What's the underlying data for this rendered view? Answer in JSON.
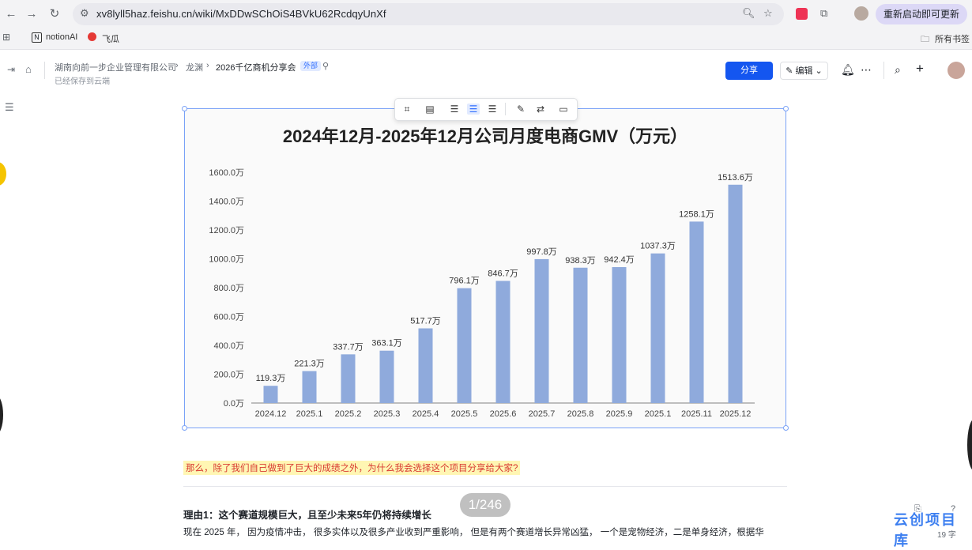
{
  "browser": {
    "url": "xv8lyll5haz.feishu.cn/wiki/MxDDwSChOiS4BVkU62RcdqyUnXf",
    "restart_label": "重新启动即可更新",
    "bookmarks": [
      "notionAI",
      "飞瓜"
    ],
    "all_bookmarks": "所有书签"
  },
  "doc_header": {
    "breadcrumbs": [
      "湖南向前一步企业管理有限公司",
      "龙渊",
      "2026千亿商机分享会"
    ],
    "separator": "›",
    "external_badge": "外部",
    "saved_status": "已经保存到云端",
    "share_label": "分享",
    "edit_label": "编辑"
  },
  "chart_data": {
    "type": "bar",
    "title": "2024年12月-2025年12月公司月度电商GMV（万元）",
    "categories": [
      "2024.12",
      "2025.1",
      "2025.2",
      "2025.3",
      "2025.4",
      "2025.5",
      "2025.6",
      "2025.7",
      "2025.8",
      "2025.9",
      "2025.1",
      "2025.11",
      "2025.12"
    ],
    "values": [
      119.3,
      221.3,
      337.7,
      363.1,
      517.7,
      796.1,
      846.7,
      997.8,
      938.3,
      942.4,
      1037.3,
      1258.1,
      1513.6
    ],
    "value_labels": [
      "119.3万",
      "221.3万",
      "337.7万",
      "363.1万",
      "517.7万",
      "796.1万",
      "846.7万",
      "997.8万",
      "938.3万",
      "942.4万",
      "1037.3万",
      "1258.1万",
      "1513.6万"
    ],
    "yticks": [
      "0.0万",
      "200.0万",
      "400.0万",
      "600.0万",
      "800.0万",
      "1000.0万",
      "1200.0万",
      "1400.0万",
      "1600.0万"
    ],
    "ylim": [
      0,
      1600
    ],
    "bar_color": "#8faadc",
    "grid": false,
    "legend": "none"
  },
  "content": {
    "highlight": "那么，除了我们自己做到了巨大的成绩之外，为什么我会选择这个项目分享给大家?",
    "reason_heading": "理由1：这个赛道规模巨大，且至少未来5年仍将持续增长",
    "paragraph": "现在 2025 年， 因为疫情冲击， 很多实体以及很多产业收到严重影响， 但是有两个赛道增长异常凶猛， 一个是宠物经济，二是单身经济，根据华",
    "page_indicator": "1/246",
    "word_count": "19 字",
    "watermark": "云创项目库"
  },
  "colors": {
    "accent": "#1456f0",
    "highlight_bg": "#fff6b3",
    "highlight_text": "#d83931"
  }
}
